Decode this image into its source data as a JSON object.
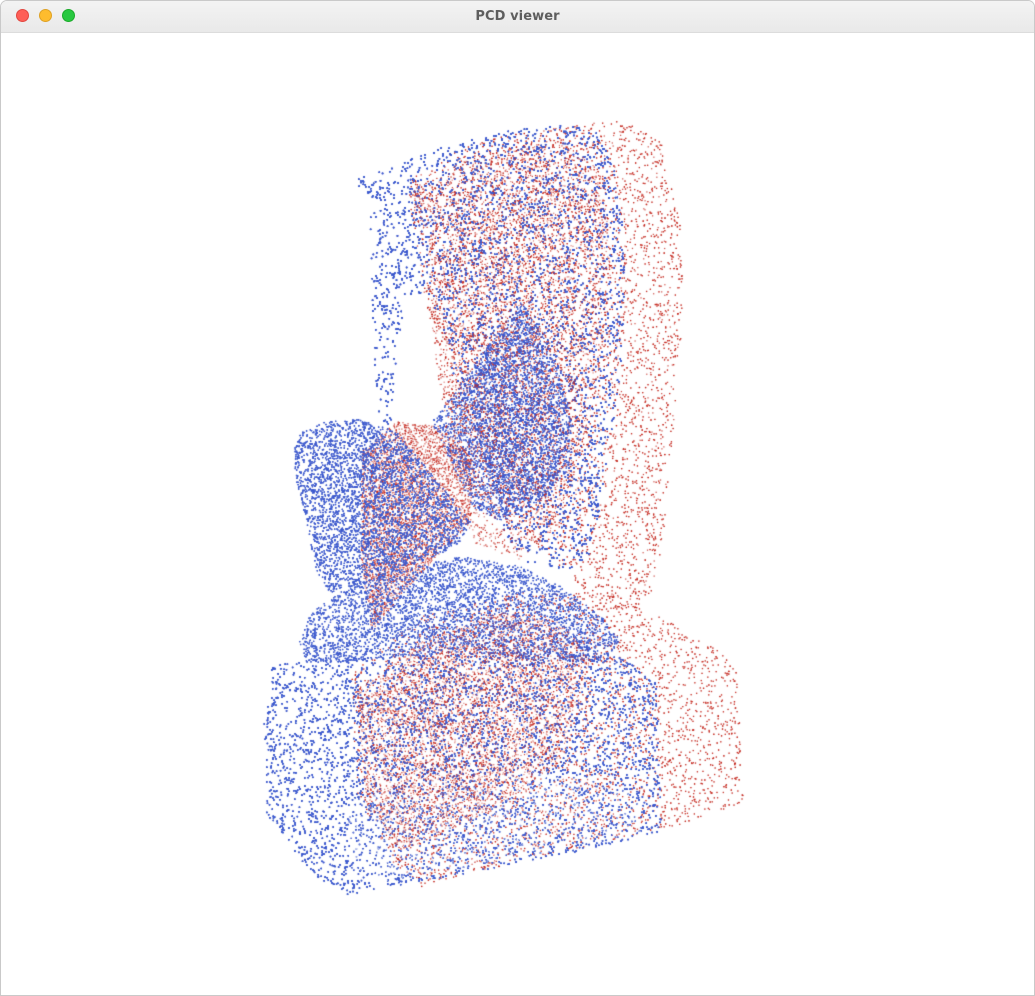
{
  "window": {
    "title": "PCD viewer",
    "controls": [
      "close",
      "minimize",
      "maximize"
    ]
  },
  "viewer": {
    "background_color": "#ffffff",
    "point_clouds": [
      {
        "color": "#3f5ccf",
        "density": "dense"
      },
      {
        "color": "#c4261c",
        "density": "sparse"
      }
    ]
  }
}
